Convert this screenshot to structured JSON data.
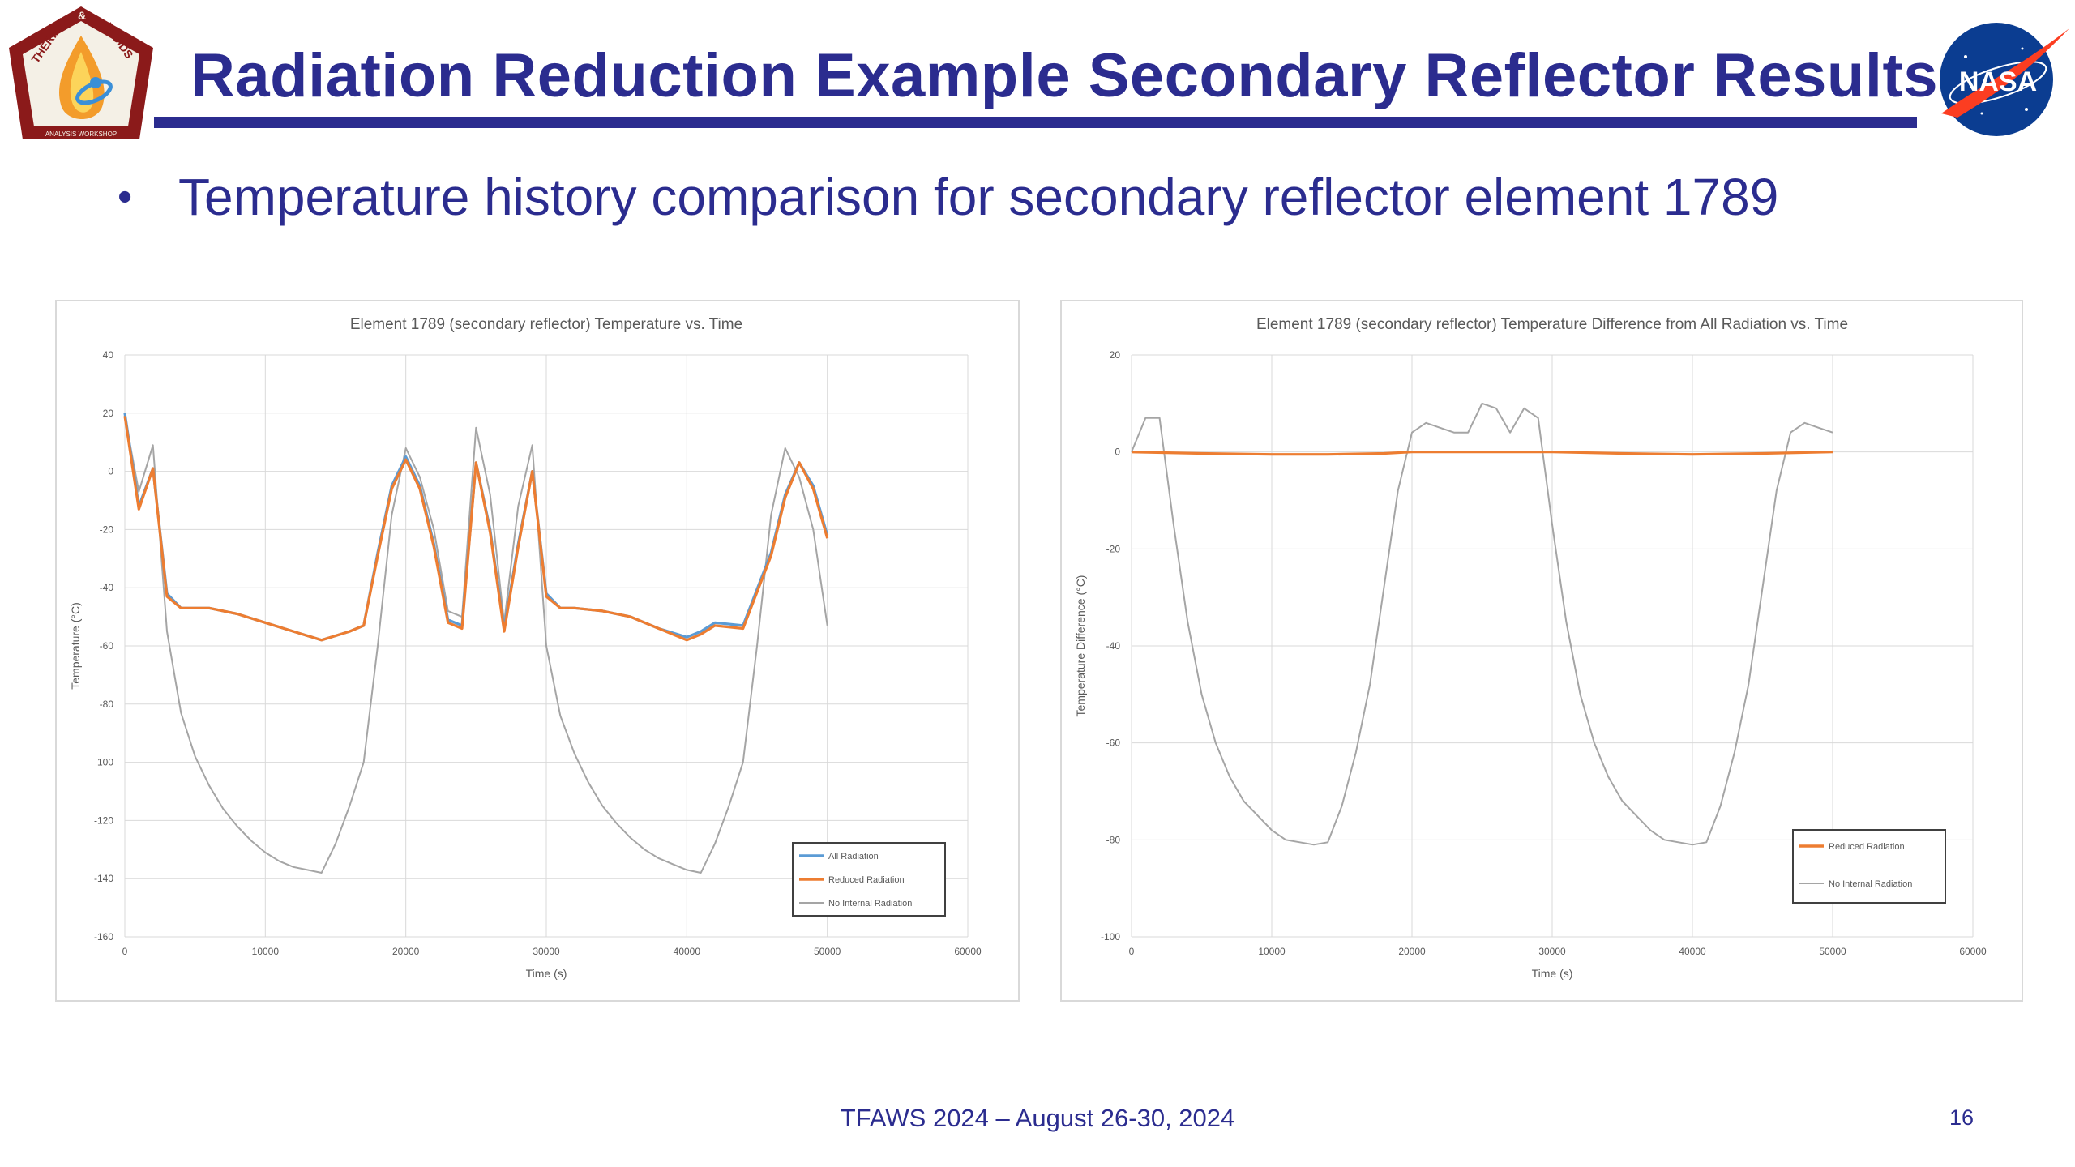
{
  "slide": {
    "title": "Radiation Reduction Example Secondary Reflector Results",
    "bullet": "Temperature history comparison for secondary reflector element 1789",
    "footer": "TFAWS 2024 – August 26-30, 2024",
    "page_number": "16",
    "logo_left": {
      "arc_left": "THERMAL",
      "arc_amp": "&",
      "arc_right": "FLUIDS",
      "bottom": "ANALYSIS WORKSHOP"
    },
    "logo_right": {
      "text": "NASA"
    },
    "colors": {
      "title": "#2b2c8f",
      "logo_red": "#8b1a1a",
      "nasa_blue": "#0b3d91",
      "nasa_red": "#fc3d21"
    }
  },
  "chart_data": [
    {
      "type": "line",
      "title": "Element 1789 (secondary reflector) Temperature vs. Time",
      "xlabel": "Time (s)",
      "ylabel": "Temperature (°C)",
      "xlim": [
        0,
        60000
      ],
      "ylim": [
        -160,
        40
      ],
      "xticks": [
        0,
        10000,
        20000,
        30000,
        40000,
        50000,
        60000
      ],
      "yticks": [
        40,
        20,
        0,
        -20,
        -40,
        -60,
        -80,
        -100,
        -120,
        -140,
        -160
      ],
      "grid": true,
      "legend_position": "bottom-right",
      "series": [
        {
          "name": "All Radiation",
          "color": "#5b9bd5",
          "x": [
            0,
            1000,
            2000,
            3000,
            4000,
            6000,
            8000,
            10000,
            12000,
            14000,
            16000,
            17000,
            18000,
            19000,
            20000,
            21000,
            22000,
            23000,
            24000,
            25000,
            26000,
            27000,
            28000,
            29000,
            30000,
            31000,
            32000,
            34000,
            36000,
            38000,
            40000,
            41000,
            42000,
            44000,
            46000,
            47000,
            48000,
            49000,
            50000
          ],
          "y": [
            20,
            -12,
            1,
            -42,
            -47,
            -47,
            -49,
            -52,
            -55,
            -58,
            -55,
            -53,
            -28,
            -5,
            5,
            -5,
            -25,
            -51,
            -53,
            3,
            -20,
            -54,
            -25,
            0,
            -42,
            -47,
            -47,
            -48,
            -50,
            -54,
            -57,
            -55,
            -52,
            -53,
            -28,
            -8,
            3,
            -5,
            -22
          ],
          "y_tail": [
            -52
          ]
        },
        {
          "name": "Reduced Radiation",
          "color": "#ed7d31",
          "x": [
            0,
            1000,
            2000,
            3000,
            4000,
            6000,
            8000,
            10000,
            12000,
            14000,
            16000,
            17000,
            18000,
            19000,
            20000,
            21000,
            22000,
            23000,
            24000,
            25000,
            26000,
            27000,
            28000,
            29000,
            30000,
            31000,
            32000,
            34000,
            36000,
            38000,
            40000,
            41000,
            42000,
            44000,
            46000,
            47000,
            48000,
            49000,
            50000
          ],
          "y": [
            19,
            -13,
            1,
            -43,
            -47,
            -47,
            -49,
            -52,
            -55,
            -58,
            -55,
            -53,
            -29,
            -6,
            4,
            -6,
            -26,
            -52,
            -54,
            3,
            -21,
            -55,
            -26,
            0,
            -43,
            -47,
            -47,
            -48,
            -50,
            -54,
            -58,
            -56,
            -53,
            -54,
            -29,
            -9,
            3,
            -6,
            -23
          ],
          "y_tail": [
            -53
          ]
        },
        {
          "name": "No Internal Radiation",
          "color": "#a5a5a5",
          "x": [
            0,
            1000,
            2000,
            3000,
            4000,
            5000,
            6000,
            7000,
            8000,
            9000,
            10000,
            11000,
            12000,
            13000,
            14000,
            15000,
            16000,
            17000,
            18000,
            19000,
            20000,
            21000,
            22000,
            23000,
            24000,
            25000,
            26000,
            27000,
            28000,
            29000,
            30000,
            31000,
            32000,
            33000,
            34000,
            35000,
            36000,
            37000,
            38000,
            39000,
            40000,
            41000,
            42000,
            43000,
            44000,
            45000,
            46000,
            47000,
            48000,
            49000,
            50000
          ],
          "y": [
            19,
            -7,
            9,
            -55,
            -83,
            -98,
            -108,
            -116,
            -122,
            -127,
            -131,
            -134,
            -136,
            -137,
            -138,
            -128,
            -115,
            -100,
            -60,
            -15,
            8,
            -2,
            -20,
            -48,
            -50,
            15,
            -8,
            -52,
            -12,
            9,
            -60,
            -84,
            -97,
            -107,
            -115,
            -121,
            -126,
            -130,
            -133,
            -135,
            -137,
            -138,
            -128,
            -115,
            -100,
            -60,
            -15,
            8,
            -2,
            -20,
            -53
          ]
        }
      ]
    },
    {
      "type": "line",
      "title": "Element 1789 (secondary reflector) Temperature Difference from All Radiation vs. Time",
      "xlabel": "Time (s)",
      "ylabel": "Temperature Difference (°C)",
      "xlim": [
        0,
        60000
      ],
      "ylim": [
        -100,
        20
      ],
      "xticks": [
        0,
        10000,
        20000,
        30000,
        40000,
        50000,
        60000
      ],
      "yticks": [
        20,
        0,
        -20,
        -40,
        -60,
        -80,
        -100
      ],
      "grid": true,
      "legend_position": "bottom-right",
      "series": [
        {
          "name": "Reduced Radiation",
          "color": "#ed7d31",
          "x": [
            0,
            5000,
            10000,
            14000,
            18000,
            20000,
            25000,
            30000,
            35000,
            40000,
            45000,
            50000
          ],
          "y": [
            0,
            -0.3,
            -0.5,
            -0.5,
            -0.3,
            0,
            0,
            0,
            -0.3,
            -0.5,
            -0.3,
            0
          ]
        },
        {
          "name": "No Internal Radiation",
          "color": "#a5a5a5",
          "x": [
            0,
            1000,
            2000,
            3000,
            4000,
            5000,
            6000,
            7000,
            8000,
            9000,
            10000,
            11000,
            12000,
            13000,
            14000,
            15000,
            16000,
            17000,
            18000,
            19000,
            20000,
            21000,
            22000,
            23000,
            24000,
            25000,
            26000,
            27000,
            28000,
            29000,
            30000,
            31000,
            32000,
            33000,
            34000,
            35000,
            36000,
            37000,
            38000,
            39000,
            40000,
            41000,
            42000,
            43000,
            44000,
            45000,
            46000,
            47000,
            48000,
            49000,
            50000
          ],
          "y": [
            0,
            7,
            7,
            -15,
            -35,
            -50,
            -60,
            -67,
            -72,
            -75,
            -78,
            -80,
            -80.5,
            -81,
            -80.5,
            -73,
            -62,
            -48,
            -28,
            -8,
            4,
            6,
            5,
            4,
            4,
            10,
            9,
            4,
            9,
            7,
            -15,
            -35,
            -50,
            -60,
            -67,
            -72,
            -75,
            -78,
            -80,
            -80.5,
            -81,
            -80.5,
            -73,
            -62,
            -48,
            -28,
            -8,
            4,
            6,
            5,
            4
          ]
        }
      ]
    }
  ]
}
